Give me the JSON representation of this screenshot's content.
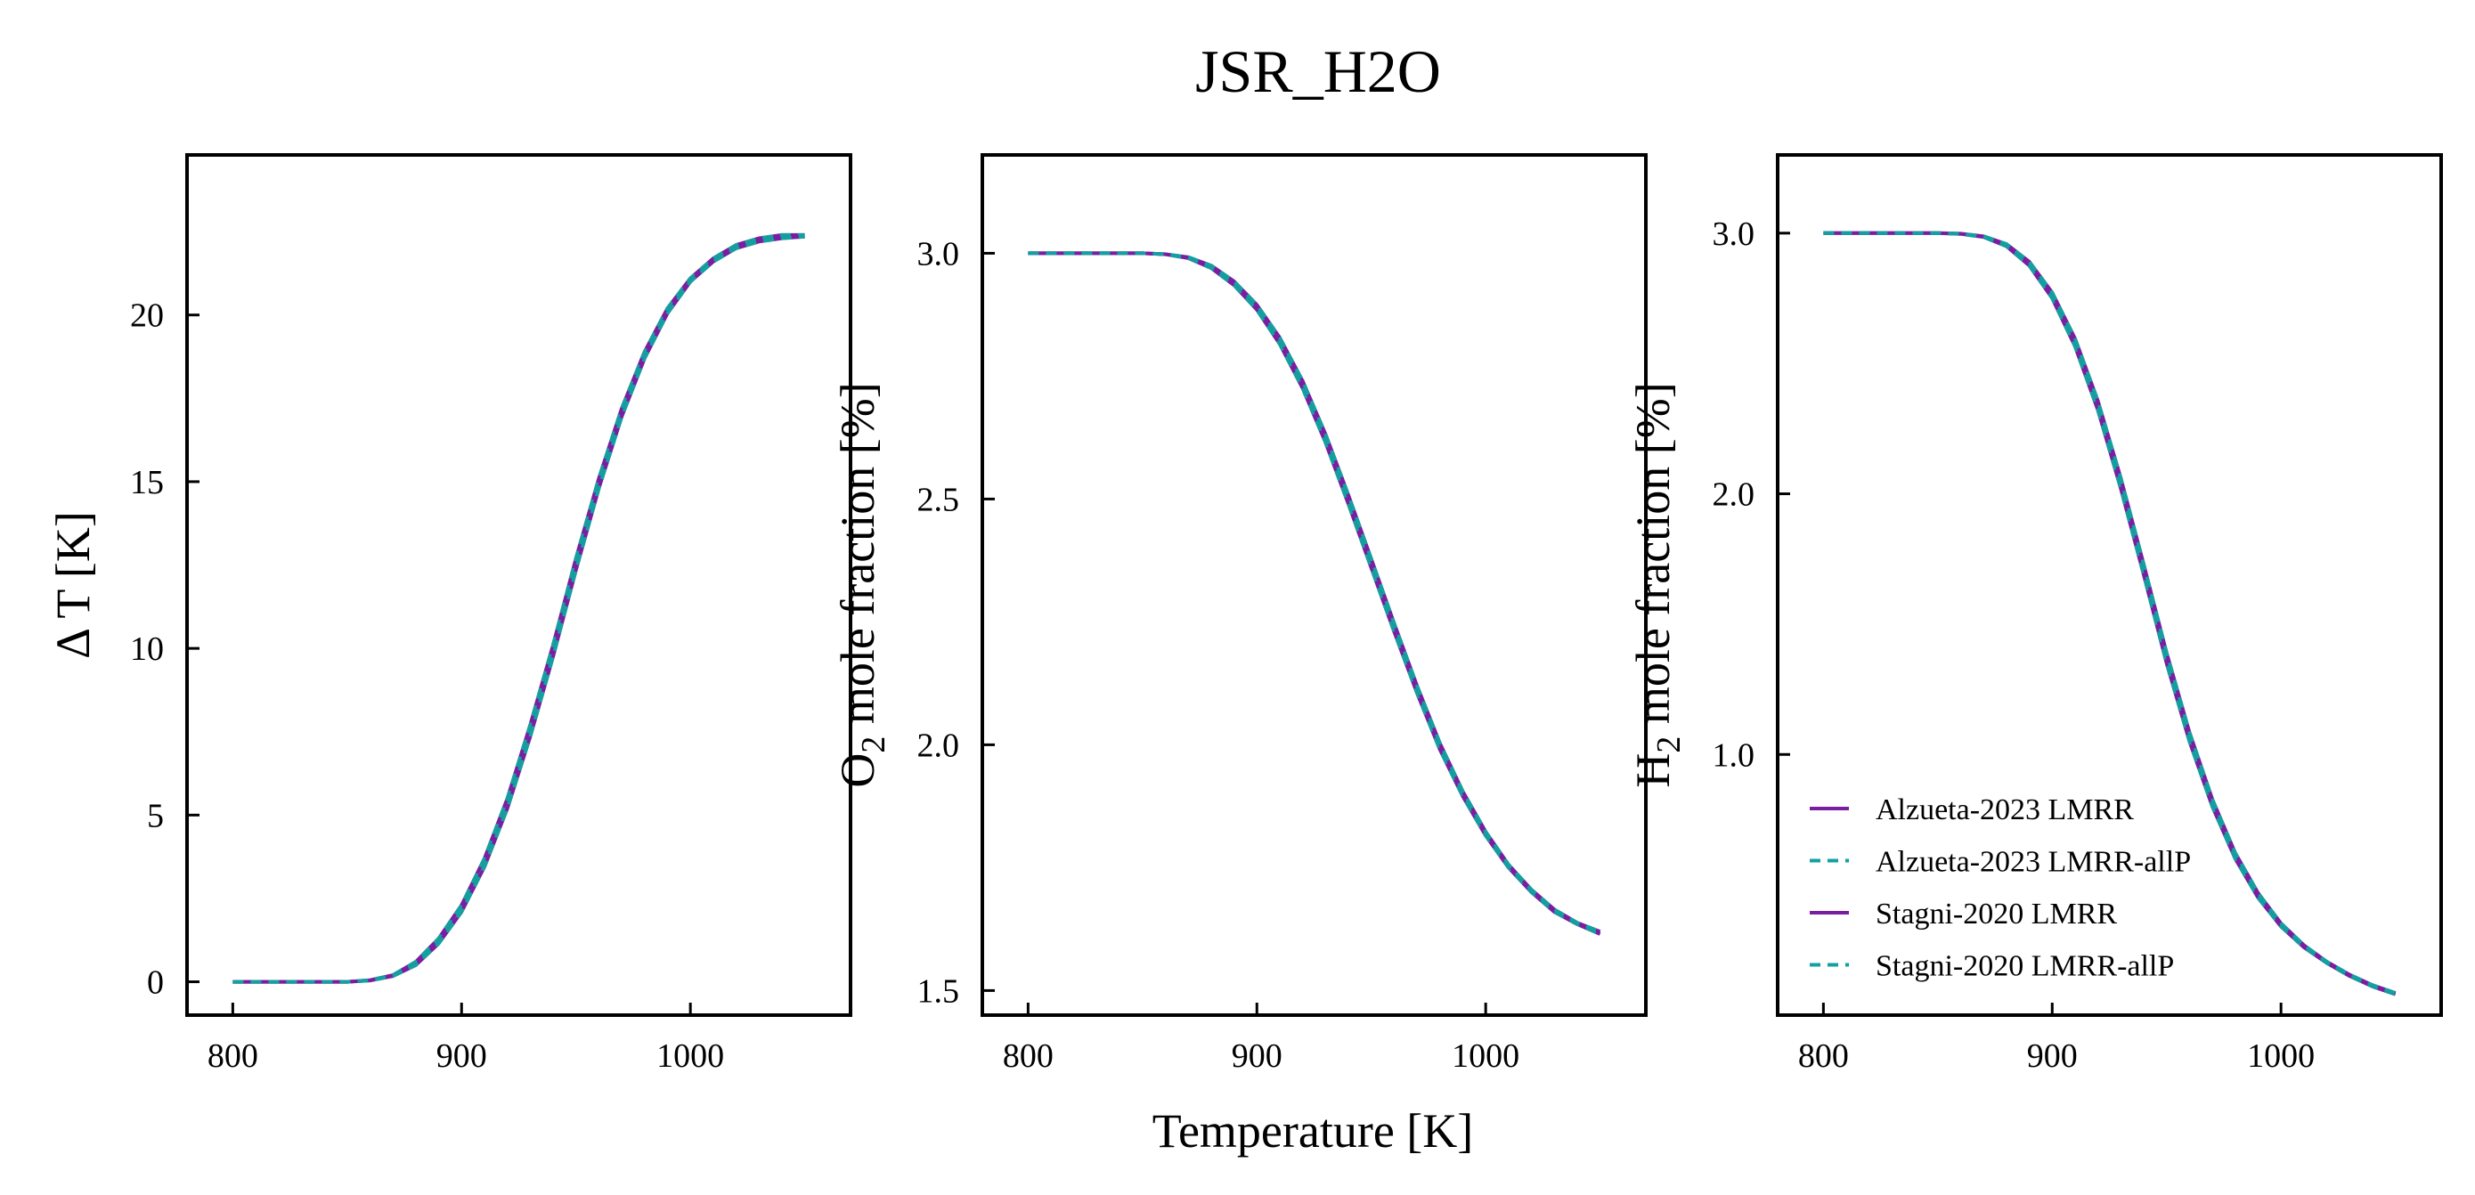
{
  "title": "JSR_H2O",
  "xlabel": "Temperature [K]",
  "colors": {
    "solid": "#7a1ea1",
    "dashed": "#14a0a0"
  },
  "legend": {
    "placement": "lower-left",
    "entries": [
      {
        "name": "Alzueta-2023 LMRR",
        "style": "solid",
        "color": "#7a1ea1"
      },
      {
        "name": "Alzueta-2023 LMRR-allP",
        "style": "dashed",
        "color": "#14a0a0"
      },
      {
        "name": "Stagni-2020 LMRR",
        "style": "solid",
        "color": "#7a1ea1"
      },
      {
        "name": "Stagni-2020 LMRR-allP",
        "style": "dashed",
        "color": "#14a0a0"
      }
    ]
  },
  "chart_data": [
    {
      "type": "line",
      "ylabel_main": "Δ T [K]",
      "ylabel_sub": "",
      "ylabel_rest": "",
      "xlim": [
        780,
        1070
      ],
      "ylim": [
        -1,
        24.8
      ],
      "xticks": [
        800,
        900,
        1000
      ],
      "yticks": [
        0,
        5,
        10,
        15,
        20
      ],
      "ytick_labels": [
        "0",
        "5",
        "10",
        "15",
        "20"
      ],
      "x": [
        800,
        825,
        850,
        860,
        870,
        880,
        890,
        900,
        910,
        920,
        930,
        940,
        950,
        960,
        970,
        980,
        990,
        1000,
        1010,
        1020,
        1030,
        1040,
        1050
      ],
      "series": [
        {
          "name": "Alzueta-2023 LMRR",
          "values": [
            0,
            0,
            0,
            0.05,
            0.2,
            0.6,
            1.3,
            2.3,
            3.7,
            5.5,
            7.7,
            10.1,
            12.7,
            15.1,
            17.2,
            18.9,
            20.2,
            21.1,
            21.7,
            22.1,
            22.3,
            22.4,
            22.4
          ]
        },
        {
          "name": "Alzueta-2023 LMRR-allP",
          "values": [
            0,
            0,
            0,
            0.05,
            0.2,
            0.6,
            1.3,
            2.3,
            3.7,
            5.5,
            7.7,
            10.1,
            12.7,
            15.1,
            17.2,
            18.9,
            20.2,
            21.1,
            21.7,
            22.1,
            22.3,
            22.4,
            22.4
          ]
        },
        {
          "name": "Stagni-2020 LMRR",
          "values": [
            0,
            0,
            0,
            0.04,
            0.17,
            0.5,
            1.15,
            2.1,
            3.45,
            5.2,
            7.35,
            9.75,
            12.35,
            14.8,
            16.95,
            18.7,
            20.05,
            21.0,
            21.6,
            22.0,
            22.2,
            22.3,
            22.35
          ]
        },
        {
          "name": "Stagni-2020 LMRR-allP",
          "values": [
            0,
            0,
            0,
            0.04,
            0.17,
            0.5,
            1.15,
            2.1,
            3.45,
            5.2,
            7.35,
            9.75,
            12.35,
            14.8,
            16.95,
            18.7,
            20.05,
            21.0,
            21.6,
            22.0,
            22.2,
            22.3,
            22.35
          ]
        }
      ]
    },
    {
      "type": "line",
      "ylabel_main": "O",
      "ylabel_sub": "2",
      "ylabel_rest": " mole fraction [%]",
      "xlim": [
        780,
        1070
      ],
      "ylim": [
        1.45,
        3.2
      ],
      "xticks": [
        800,
        900,
        1000
      ],
      "yticks": [
        1.5,
        2.0,
        2.5,
        3.0
      ],
      "ytick_labels": [
        "1.5",
        "2.0",
        "2.5",
        "3.0"
      ],
      "x": [
        800,
        825,
        850,
        860,
        870,
        880,
        890,
        900,
        910,
        920,
        930,
        940,
        950,
        960,
        970,
        980,
        990,
        1000,
        1010,
        1020,
        1030,
        1040,
        1050
      ],
      "series": [
        {
          "name": "Alzueta-2023 LMRR",
          "values": [
            3.0,
            3.0,
            3.0,
            2.998,
            2.99,
            2.97,
            2.935,
            2.885,
            2.815,
            2.725,
            2.615,
            2.49,
            2.36,
            2.23,
            2.105,
            1.99,
            1.895,
            1.815,
            1.75,
            1.7,
            1.66,
            1.635,
            1.615
          ]
        },
        {
          "name": "Alzueta-2023 LMRR-allP",
          "values": [
            3.0,
            3.0,
            3.0,
            2.998,
            2.99,
            2.97,
            2.935,
            2.885,
            2.815,
            2.725,
            2.615,
            2.49,
            2.36,
            2.23,
            2.105,
            1.99,
            1.895,
            1.815,
            1.75,
            1.7,
            1.66,
            1.635,
            1.615
          ]
        },
        {
          "name": "Stagni-2020 LMRR",
          "values": [
            3.0,
            3.0,
            3.0,
            2.998,
            2.992,
            2.975,
            2.943,
            2.895,
            2.828,
            2.74,
            2.632,
            2.508,
            2.378,
            2.247,
            2.12,
            2.003,
            1.905,
            1.823,
            1.756,
            1.705,
            1.665,
            1.638,
            1.62
          ]
        },
        {
          "name": "Stagni-2020 LMRR-allP",
          "values": [
            3.0,
            3.0,
            3.0,
            2.998,
            2.992,
            2.975,
            2.943,
            2.895,
            2.828,
            2.74,
            2.632,
            2.508,
            2.378,
            2.247,
            2.12,
            2.003,
            1.905,
            1.823,
            1.756,
            1.705,
            1.665,
            1.638,
            1.62
          ]
        }
      ]
    },
    {
      "type": "line",
      "ylabel_main": "H",
      "ylabel_sub": "2",
      "ylabel_rest": " mole fraction [%]",
      "xlim": [
        780,
        1070
      ],
      "ylim": [
        0.0,
        3.3
      ],
      "xticks": [
        800,
        900,
        1000
      ],
      "yticks": [
        1.0,
        2.0,
        3.0
      ],
      "ytick_labels": [
        "1.0",
        "2.0",
        "3.0"
      ],
      "x": [
        800,
        825,
        850,
        860,
        870,
        880,
        890,
        900,
        910,
        920,
        930,
        940,
        950,
        960,
        970,
        980,
        990,
        1000,
        1010,
        1020,
        1030,
        1040,
        1050
      ],
      "series": [
        {
          "name": "Alzueta-2023 LMRR",
          "values": [
            3.0,
            3.0,
            3.0,
            2.997,
            2.985,
            2.95,
            2.875,
            2.75,
            2.565,
            2.32,
            2.02,
            1.69,
            1.35,
            1.05,
            0.8,
            0.6,
            0.45,
            0.34,
            0.26,
            0.2,
            0.15,
            0.11,
            0.08
          ]
        },
        {
          "name": "Alzueta-2023 LMRR-allP",
          "values": [
            3.0,
            3.0,
            3.0,
            2.997,
            2.985,
            2.95,
            2.875,
            2.75,
            2.565,
            2.32,
            2.02,
            1.69,
            1.35,
            1.05,
            0.8,
            0.6,
            0.45,
            0.34,
            0.26,
            0.2,
            0.15,
            0.11,
            0.08
          ]
        },
        {
          "name": "Stagni-2020 LMRR",
          "values": [
            3.0,
            3.0,
            3.0,
            2.998,
            2.988,
            2.958,
            2.89,
            2.772,
            2.595,
            2.355,
            2.06,
            1.73,
            1.39,
            1.085,
            0.828,
            0.622,
            0.468,
            0.352,
            0.268,
            0.205,
            0.155,
            0.115,
            0.085
          ]
        },
        {
          "name": "Stagni-2020 LMRR-allP",
          "values": [
            3.0,
            3.0,
            3.0,
            2.998,
            2.988,
            2.958,
            2.89,
            2.772,
            2.595,
            2.355,
            2.06,
            1.73,
            1.39,
            1.085,
            0.828,
            0.622,
            0.468,
            0.352,
            0.268,
            0.205,
            0.155,
            0.115,
            0.085
          ]
        }
      ]
    }
  ]
}
